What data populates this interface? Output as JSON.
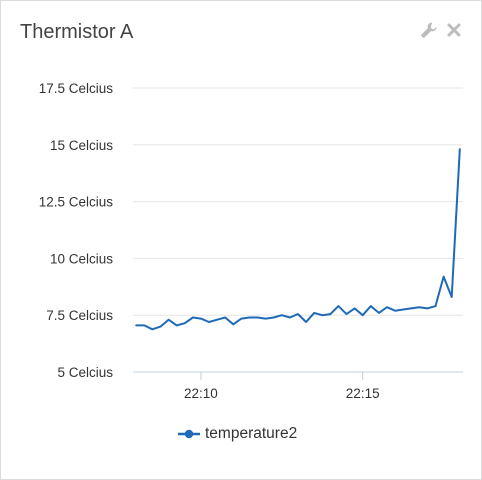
{
  "widget": {
    "title": "Thermistor A",
    "tools": {
      "settings_icon": "wrench-icon",
      "close_icon": "close-icon"
    }
  },
  "chart_data": {
    "type": "line",
    "title": "",
    "xlabel": "",
    "ylabel": "",
    "y_tick_labels": [
      "5 Celcius",
      "7.5 Celcius",
      "10 Celcius",
      "12.5 Celcius",
      "15 Celcius",
      "17.5 Celcius"
    ],
    "y_tick_values": [
      5,
      7.5,
      10,
      12.5,
      15,
      17.5
    ],
    "ylim": [
      5,
      17.5
    ],
    "x_tick_labels": [
      "22:10",
      "22:15"
    ],
    "x_tick_values": [
      "22:10",
      "22:15"
    ],
    "xlim": [
      "22:07:54",
      "22:18:06"
    ],
    "grid": true,
    "legend_position": "bottom-center",
    "colors": {
      "series": "#1f6ab8",
      "grid": "#e6e6e6",
      "axis": "#c0d0e0"
    },
    "series": [
      {
        "name": "temperature2",
        "x": [
          "22:08:00",
          "22:08:15",
          "22:08:30",
          "22:08:45",
          "22:09:00",
          "22:09:15",
          "22:09:30",
          "22:09:45",
          "22:10:00",
          "22:10:15",
          "22:10:30",
          "22:10:45",
          "22:11:00",
          "22:11:15",
          "22:11:30",
          "22:11:45",
          "22:12:00",
          "22:12:15",
          "22:12:30",
          "22:12:45",
          "22:13:00",
          "22:13:15",
          "22:13:30",
          "22:13:45",
          "22:14:00",
          "22:14:15",
          "22:14:30",
          "22:14:45",
          "22:15:00",
          "22:15:15",
          "22:15:30",
          "22:15:45",
          "22:16:00",
          "22:16:15",
          "22:16:30",
          "22:16:45",
          "22:17:00",
          "22:17:15",
          "22:17:30",
          "22:17:45",
          "22:18:00"
        ],
        "values": [
          7.05,
          7.05,
          6.88,
          7.0,
          7.3,
          7.05,
          7.15,
          7.4,
          7.35,
          7.2,
          7.3,
          7.4,
          7.1,
          7.35,
          7.4,
          7.4,
          7.35,
          7.4,
          7.5,
          7.4,
          7.55,
          7.2,
          7.6,
          7.5,
          7.55,
          7.9,
          7.55,
          7.8,
          7.5,
          7.9,
          7.6,
          7.85,
          7.7,
          7.75,
          7.8,
          7.85,
          7.8,
          7.9,
          9.2,
          8.3,
          14.8
        ]
      }
    ]
  }
}
